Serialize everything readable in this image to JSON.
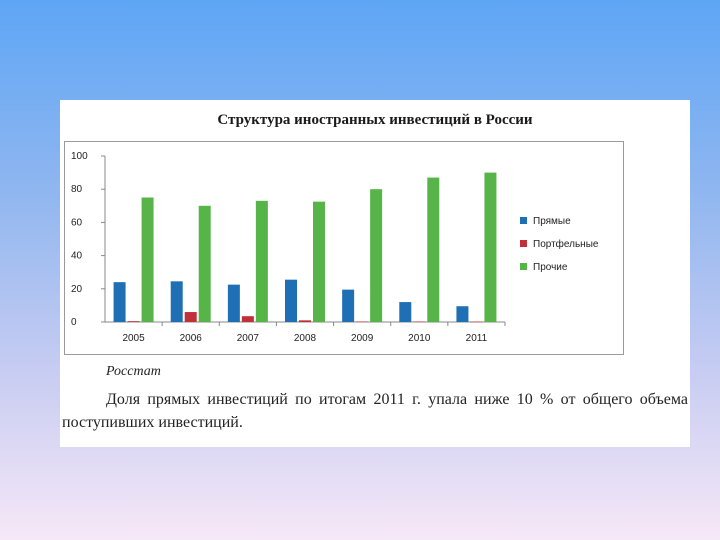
{
  "colors": {
    "Прямые": "#1f6fb4",
    "Портфельные": "#c0303a",
    "Прочие": "#56b449"
  },
  "chart_data": {
    "type": "bar",
    "title": "Структура иностранных инвестиций в России",
    "categories": [
      "2005",
      "2006",
      "2007",
      "2008",
      "2009",
      "2010",
      "2011"
    ],
    "series": [
      {
        "name": "Прямые",
        "values": [
          24,
          24.5,
          22.5,
          25.5,
          19.5,
          12,
          9.5
        ]
      },
      {
        "name": "Портфельные",
        "values": [
          0.5,
          6,
          3.5,
          1,
          0.3,
          0.3,
          0.2
        ]
      },
      {
        "name": "Прочие",
        "values": [
          75,
          70,
          73,
          72.5,
          80,
          87,
          90
        ]
      }
    ],
    "ylim": [
      0,
      100
    ],
    "yticks": [
      0,
      20,
      40,
      60,
      80,
      100
    ],
    "xlabel": "",
    "ylabel": "",
    "legend": "right",
    "grid": false
  },
  "source": "Росстат",
  "caption": "Доля прямых инвестиций по итогам 2011 г. упала ниже 10 % от общего объема поступивших инвестиций."
}
